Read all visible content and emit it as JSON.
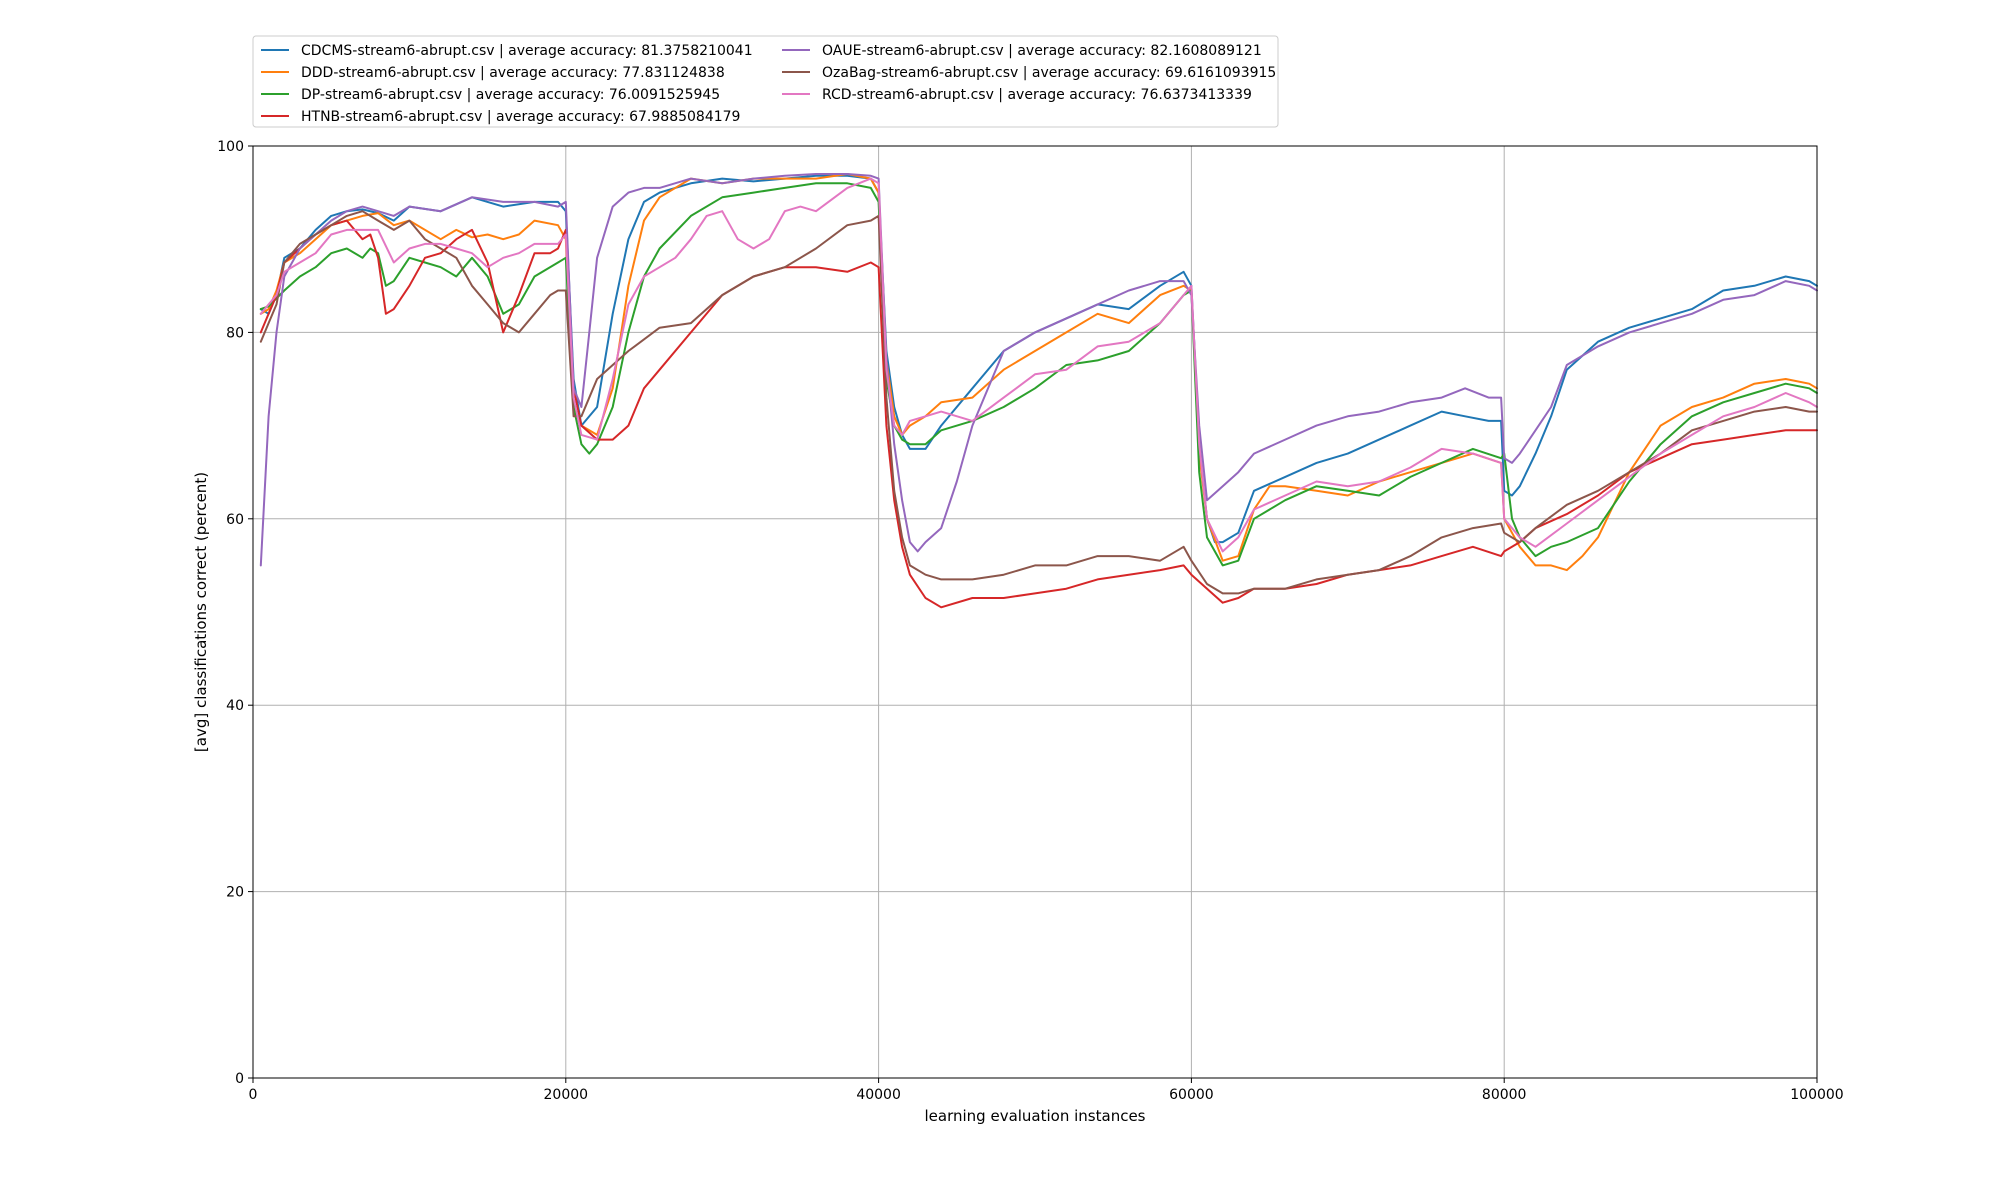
{
  "chart_data": {
    "type": "line",
    "xlabel": "learning evaluation instances",
    "ylabel": "[avg] classifications correct (percent)",
    "xlim": [
      0,
      100000
    ],
    "ylim": [
      0,
      100
    ],
    "xticks": [
      0,
      20000,
      40000,
      60000,
      80000,
      100000
    ],
    "yticks": [
      0,
      20,
      40,
      60,
      80,
      100
    ],
    "grid": true,
    "legend_position": "top-left, above plot, 2 columns",
    "series": [
      {
        "name": "CDCMS-stream6-abrupt.csv | average accuracy: 81.3758210041",
        "color": "#1f77b4",
        "x": [
          500,
          1000,
          1500,
          2000,
          3000,
          4000,
          5000,
          6000,
          7000,
          8000,
          9000,
          10000,
          12000,
          14000,
          16000,
          18000,
          19500,
          20000,
          20500,
          21000,
          22000,
          23000,
          24000,
          25000,
          26000,
          28000,
          30000,
          32000,
          34000,
          36000,
          38000,
          39500,
          40000,
          40500,
          41000,
          41500,
          42000,
          43000,
          44000,
          46000,
          48000,
          50000,
          52000,
          54000,
          56000,
          58000,
          59500,
          60000,
          60500,
          61000,
          61500,
          62000,
          63000,
          64000,
          66000,
          68000,
          70000,
          72000,
          74000,
          76000,
          77500,
          79000,
          79800,
          80000,
          80500,
          81000,
          82000,
          83000,
          84000,
          86000,
          88000,
          90000,
          92000,
          94000,
          96000,
          98000,
          99500,
          100000
        ],
        "values": [
          82.5,
          82,
          84,
          88,
          89,
          91,
          92.5,
          93,
          93.2,
          92.8,
          92,
          93.5,
          93,
          94.5,
          93.5,
          94,
          94,
          93,
          75,
          70,
          72,
          82,
          90,
          94,
          95,
          96,
          96.5,
          96.2,
          96.5,
          96.8,
          96.8,
          96.5,
          95,
          78,
          72,
          69,
          67.5,
          67.5,
          70,
          74,
          78,
          80,
          81.5,
          83,
          82.5,
          85,
          86.5,
          85,
          68,
          60,
          57.5,
          57.5,
          58.5,
          63,
          64.5,
          66,
          67,
          68.5,
          70,
          71.5,
          71,
          70.5,
          70.5,
          63,
          62.5,
          63.5,
          67,
          71,
          76,
          79,
          80.5,
          81.5,
          82.5,
          84.5,
          85,
          86,
          85.5,
          85
        ]
      },
      {
        "name": "DDD-stream6-abrupt.csv | average accuracy: 77.831124838",
        "color": "#ff7f0e",
        "x": [
          500,
          1000,
          1500,
          2000,
          3000,
          4000,
          5000,
          6000,
          7000,
          8000,
          9000,
          10000,
          12000,
          13000,
          14000,
          15000,
          16000,
          17000,
          18000,
          19500,
          20000,
          20500,
          21000,
          22000,
          23000,
          24000,
          25000,
          26000,
          28000,
          30000,
          32000,
          34000,
          36000,
          38000,
          39500,
          40000,
          40500,
          41000,
          41500,
          42000,
          43000,
          44000,
          46000,
          48000,
          50000,
          52000,
          54000,
          56000,
          58000,
          59500,
          60000,
          60500,
          61000,
          62000,
          63000,
          64000,
          65000,
          66000,
          68000,
          70000,
          72000,
          74000,
          76000,
          78000,
          79800,
          80000,
          81000,
          82000,
          83000,
          84000,
          85000,
          86000,
          88000,
          90000,
          92000,
          94000,
          96000,
          98000,
          99500,
          100000
        ],
        "values": [
          82,
          82.5,
          84.5,
          87.5,
          88.5,
          90,
          91.5,
          92,
          92.5,
          92.8,
          91.5,
          92,
          90,
          91,
          90.2,
          90.5,
          90,
          90.5,
          92,
          91.5,
          90,
          72,
          70,
          69,
          74,
          85,
          92,
          94.5,
          96.5,
          96,
          96.5,
          96.5,
          96.5,
          97,
          96.5,
          95,
          77,
          71,
          69,
          70,
          71,
          72.5,
          73,
          76,
          78,
          80,
          82,
          81,
          84,
          85,
          84.5,
          67,
          60,
          55.5,
          56,
          61,
          63.5,
          63.5,
          63,
          62.5,
          64,
          65,
          66,
          67,
          66,
          60,
          57,
          55,
          55,
          54.5,
          56,
          58,
          65,
          70,
          72,
          73,
          74.5,
          75,
          74.5,
          74
        ]
      },
      {
        "name": "DP-stream6-abrupt.csv | average accuracy: 76.0091525945",
        "color": "#2ca02c",
        "x": [
          500,
          1000,
          2000,
          3000,
          4000,
          5000,
          6000,
          7000,
          7500,
          8000,
          8500,
          9000,
          10000,
          11000,
          12000,
          13000,
          14000,
          15000,
          16000,
          17000,
          18000,
          19500,
          20000,
          20500,
          21000,
          21500,
          22000,
          23000,
          24000,
          25000,
          26000,
          28000,
          30000,
          32000,
          34000,
          36000,
          38000,
          39500,
          40000,
          40500,
          41000,
          41500,
          42000,
          43000,
          44000,
          46000,
          48000,
          50000,
          52000,
          54000,
          56000,
          58000,
          59500,
          60000,
          60500,
          61000,
          62000,
          63000,
          64000,
          66000,
          68000,
          70000,
          72000,
          74000,
          76000,
          78000,
          79800,
          80000,
          80500,
          81000,
          82000,
          83000,
          84000,
          86000,
          88000,
          90000,
          92000,
          94000,
          96000,
          98000,
          99500,
          100000
        ],
        "values": [
          82.5,
          82.8,
          84.5,
          86,
          87,
          88.5,
          89,
          88,
          89,
          88.5,
          85,
          85.5,
          88,
          87.5,
          87,
          86,
          88,
          86,
          82,
          83,
          86,
          87.5,
          88,
          72,
          68,
          67,
          68,
          72,
          80,
          86,
          89,
          92.5,
          94.5,
          95,
          95.5,
          96,
          96,
          95.5,
          94,
          75,
          70,
          68.5,
          68,
          68,
          69.5,
          70.5,
          72,
          74,
          76.5,
          77,
          78,
          81,
          84,
          84.5,
          65,
          58,
          55,
          55.5,
          60,
          62,
          63.5,
          63,
          62.5,
          64.5,
          66,
          67.5,
          66.5,
          67,
          60,
          58,
          56,
          57,
          57.5,
          59,
          64,
          68,
          71,
          72.5,
          73.5,
          74.5,
          74,
          73.5
        ]
      },
      {
        "name": "HTNB-stream6-abrupt.csv | average accuracy: 67.9885084179",
        "color": "#d62728",
        "x": [
          500,
          1000,
          1500,
          2000,
          3000,
          4000,
          5000,
          6000,
          7000,
          7500,
          8000,
          8500,
          9000,
          10000,
          11000,
          12000,
          13000,
          14000,
          15000,
          16000,
          17000,
          18000,
          19000,
          19500,
          20000,
          20500,
          21000,
          22000,
          23000,
          24000,
          25000,
          26000,
          28000,
          30000,
          32000,
          34000,
          36000,
          38000,
          39500,
          40000,
          40500,
          41000,
          41500,
          42000,
          43000,
          44000,
          46000,
          48000,
          50000,
          52000,
          54000,
          56000,
          58000,
          59500,
          60000,
          61000,
          62000,
          63000,
          64000,
          66000,
          68000,
          70000,
          72000,
          74000,
          76000,
          78000,
          79800,
          80000,
          81000,
          82000,
          84000,
          86000,
          88000,
          90000,
          92000,
          94000,
          96000,
          98000,
          99500,
          100000
        ],
        "values": [
          80,
          82,
          84,
          87.5,
          89,
          90.5,
          91.5,
          92,
          90,
          90.5,
          88,
          82,
          82.5,
          85,
          88,
          88.5,
          90,
          91,
          87.5,
          80,
          84,
          88.5,
          88.5,
          89,
          91,
          74,
          70,
          68.5,
          68.5,
          70,
          74,
          76,
          80,
          84,
          86,
          87,
          87,
          86.5,
          87.5,
          87,
          70,
          62,
          57,
          54,
          51.5,
          50.5,
          51.5,
          51.5,
          52,
          52.5,
          53.5,
          54,
          54.5,
          55,
          54,
          52.5,
          51,
          51.5,
          52.5,
          52.5,
          53,
          54,
          54.5,
          55,
          56,
          57,
          56,
          56.5,
          57.5,
          59,
          60.5,
          62.5,
          65,
          66.5,
          68,
          68.5,
          69,
          69.5,
          69.5,
          69.5
        ]
      },
      {
        "name": "OAUE-stream6-abrupt.csv | average accuracy: 82.1608089121",
        "color": "#9467bd",
        "x": [
          500,
          1000,
          1500,
          2000,
          3000,
          4000,
          5000,
          6000,
          7000,
          8000,
          9000,
          10000,
          12000,
          14000,
          16000,
          18000,
          19500,
          20000,
          20500,
          21000,
          21500,
          22000,
          23000,
          24000,
          25000,
          26000,
          28000,
          30000,
          32000,
          34000,
          36000,
          38000,
          39500,
          40000,
          40500,
          41000,
          41500,
          42000,
          42500,
          43000,
          44000,
          45000,
          46000,
          48000,
          50000,
          52000,
          54000,
          56000,
          58000,
          59500,
          60000,
          60500,
          61000,
          62000,
          63000,
          64000,
          66000,
          68000,
          70000,
          72000,
          74000,
          76000,
          77500,
          79000,
          79800,
          80000,
          80500,
          81000,
          82000,
          83000,
          84000,
          86000,
          88000,
          90000,
          92000,
          94000,
          96000,
          98000,
          99500,
          100000
        ],
        "values": [
          55,
          71,
          80,
          86,
          89,
          90.5,
          92,
          93,
          93.5,
          93,
          92.5,
          93.5,
          93,
          94.5,
          94,
          94,
          93.5,
          94,
          74,
          72,
          80,
          88,
          93.5,
          95,
          95.5,
          95.5,
          96.5,
          96,
          96.5,
          96.8,
          97,
          97,
          96.8,
          96.5,
          77,
          68,
          62,
          57.5,
          56.5,
          57.5,
          59,
          64,
          70,
          78,
          80,
          81.5,
          83,
          84.5,
          85.5,
          85.5,
          84,
          70,
          62,
          63.5,
          65,
          67,
          68.5,
          70,
          71,
          71.5,
          72.5,
          73,
          74,
          73,
          73,
          66.5,
          66,
          67,
          69.5,
          72,
          76.5,
          78.5,
          80,
          81,
          82,
          83.5,
          84,
          85.5,
          85,
          84.5
        ]
      },
      {
        "name": "OzaBag-stream6-abrupt.csv | average accuracy: 69.6161093915",
        "color": "#8c564b",
        "x": [
          500,
          1000,
          1500,
          2000,
          3000,
          4000,
          5000,
          6000,
          7000,
          8000,
          9000,
          10000,
          11000,
          12000,
          13000,
          14000,
          15000,
          16000,
          17000,
          18000,
          19000,
          19500,
          20000,
          20500,
          21000,
          22000,
          24000,
          26000,
          28000,
          30000,
          32000,
          34000,
          36000,
          38000,
          39500,
          40000,
          40500,
          41000,
          41500,
          42000,
          43000,
          44000,
          46000,
          48000,
          50000,
          52000,
          54000,
          56000,
          58000,
          59500,
          60000,
          61000,
          62000,
          63000,
          64000,
          66000,
          68000,
          70000,
          72000,
          74000,
          76000,
          78000,
          79800,
          80000,
          81000,
          82000,
          84000,
          86000,
          88000,
          90000,
          92000,
          94000,
          96000,
          98000,
          99500,
          100000
        ],
        "values": [
          79,
          81,
          83,
          87.5,
          89.5,
          90.5,
          91.5,
          92.5,
          93,
          92,
          91,
          92,
          90,
          89,
          88,
          85,
          83,
          81,
          80,
          82,
          84,
          84.5,
          84.5,
          71,
          71,
          75,
          78,
          80.5,
          81,
          84,
          86,
          87,
          89,
          91.5,
          92,
          92.5,
          73,
          63,
          58,
          55,
          54,
          53.5,
          53.5,
          54,
          55,
          55,
          56,
          56,
          55.5,
          57,
          55.5,
          53,
          52,
          52,
          52.5,
          52.5,
          53.5,
          54,
          54.5,
          56,
          58,
          59,
          59.5,
          58.5,
          57.5,
          59,
          61.5,
          63,
          65,
          67,
          69.5,
          70.5,
          71.5,
          72,
          71.5,
          71.5
        ]
      },
      {
        "name": "RCD-stream6-abrupt.csv | average accuracy: 76.6373413339",
        "color": "#e377c2",
        "x": [
          500,
          1000,
          1500,
          2000,
          3000,
          4000,
          5000,
          6000,
          7000,
          8000,
          9000,
          10000,
          11000,
          12000,
          13000,
          14000,
          15000,
          16000,
          17000,
          18000,
          19500,
          20000,
          20500,
          21000,
          22000,
          23000,
          24000,
          25000,
          26000,
          27000,
          28000,
          29000,
          30000,
          31000,
          32000,
          33000,
          34000,
          35000,
          36000,
          38000,
          39500,
          40000,
          40500,
          41000,
          41500,
          42000,
          43000,
          44000,
          46000,
          48000,
          50000,
          52000,
          54000,
          56000,
          58000,
          59500,
          60000,
          60500,
          61000,
          62000,
          63000,
          64000,
          66000,
          68000,
          70000,
          72000,
          74000,
          76000,
          78000,
          79800,
          80000,
          81000,
          82000,
          84000,
          86000,
          88000,
          90000,
          92000,
          94000,
          96000,
          98000,
          99500,
          100000
        ],
        "values": [
          82,
          83,
          84,
          86.5,
          87.5,
          88.5,
          90.5,
          91,
          91,
          91,
          87.5,
          89,
          89.5,
          89.5,
          89,
          88.5,
          87,
          88,
          88.5,
          89.5,
          89.5,
          90.5,
          73,
          69,
          68.5,
          75,
          83,
          86,
          87,
          88,
          90,
          92.5,
          93,
          90,
          89,
          90,
          93,
          93.5,
          93,
          95.5,
          96.5,
          96,
          76,
          70,
          69,
          70.5,
          71,
          71.5,
          70.5,
          73,
          75.5,
          76,
          78.5,
          79,
          81,
          84,
          85,
          68,
          60,
          56.5,
          58,
          61,
          62.5,
          64,
          63.5,
          64,
          65.5,
          67.5,
          67,
          66,
          60,
          58,
          57,
          59.5,
          62,
          64.5,
          67,
          69,
          71,
          72,
          73.5,
          72.5,
          72
        ]
      }
    ]
  }
}
